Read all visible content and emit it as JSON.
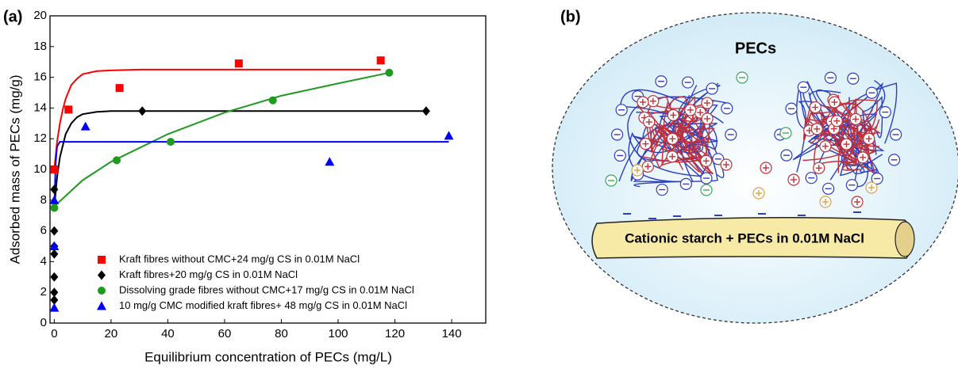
{
  "chart_data": {
    "type": "scatter",
    "panel_label": "(a)",
    "x_label": "Equilibrium concentration of PECs (mg/L)",
    "y_label": "Adsorbed mass of PECs (mg/g)",
    "xlim": [
      -1.5,
      152
    ],
    "ylim": [
      0,
      20
    ],
    "xticks": [
      0,
      20,
      40,
      60,
      80,
      100,
      120,
      140
    ],
    "yticks": [
      0,
      2,
      4,
      6,
      8,
      10,
      12,
      14,
      16,
      18,
      20
    ],
    "legend": "lower left",
    "series": [
      {
        "name": "Kraft fibres without CMC+24 mg/g CS in 0.01M NaCl",
        "color": "#ff0000",
        "marker": "square",
        "x": [
          0,
          5,
          23,
          65,
          115
        ],
        "values": [
          10,
          13.9,
          15.3,
          16.9,
          17.1
        ],
        "fit": {
          "x": [
            0,
            1,
            2,
            3,
            4,
            6,
            8,
            10,
            15,
            20,
            30,
            50,
            80,
            115
          ],
          "values": [
            10,
            11.8,
            13,
            13.9,
            14.6,
            15.5,
            15.9,
            16.2,
            16.4,
            16.45,
            16.5,
            16.5,
            16.5,
            16.5
          ]
        }
      },
      {
        "name": "Kraft fibres+20 mg/g CS in 0.01M NaCl",
        "color": "#000000",
        "marker": "diamond",
        "x": [
          0,
          0,
          0,
          0,
          0,
          0,
          0,
          31,
          131
        ],
        "values": [
          8.7,
          6,
          5,
          4.5,
          3,
          2,
          1.5,
          13.8,
          13.8
        ],
        "fit": {
          "x": [
            0,
            1,
            2,
            4,
            6,
            8,
            10,
            15,
            20,
            30,
            60,
            131
          ],
          "values": [
            7.5,
            9.5,
            10.8,
            12.3,
            13,
            13.4,
            13.6,
            13.75,
            13.8,
            13.8,
            13.8,
            13.8
          ]
        }
      },
      {
        "name": "Dissolving grade fibres without CMC+17 mg/g CS in 0.01M NaCl",
        "color": "#1f9a1f",
        "marker": "circle",
        "x": [
          0,
          22,
          41,
          77,
          118
        ],
        "values": [
          7.5,
          10.6,
          11.8,
          14.5,
          16.3
        ],
        "fit": {
          "x": [
            0,
            10,
            20,
            40,
            60,
            80,
            100,
            118
          ],
          "values": [
            7.6,
            9.3,
            10.5,
            12.3,
            13.7,
            14.8,
            15.6,
            16.3
          ]
        }
      },
      {
        "name": "10 mg/g CMC modified kraft fibres+ 48 mg/g CS in 0.01M NaCl",
        "color": "#0000ff",
        "marker": "triangle",
        "x": [
          0,
          0,
          0,
          11,
          97,
          139
        ],
        "values": [
          1,
          5,
          8,
          12.8,
          10.5,
          12.2
        ],
        "fit": {
          "x": [
            0,
            0.5,
            1,
            2,
            5,
            139
          ],
          "values": [
            7.5,
            10.5,
            11.5,
            11.8,
            11.8,
            11.8
          ]
        }
      }
    ]
  },
  "diagram": {
    "panel_label": "(b)",
    "title": "PECs",
    "banner": "Cationic starch + PECs in 0.01M NaCl"
  }
}
